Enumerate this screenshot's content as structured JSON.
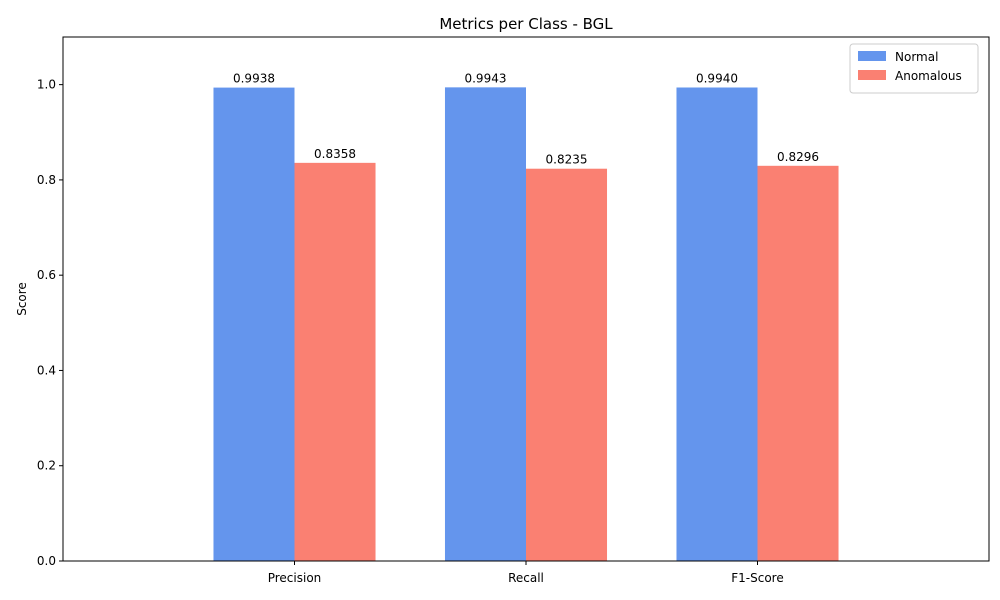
{
  "chart_data": {
    "type": "bar",
    "title": "Metrics per Class - BGL",
    "xlabel": "",
    "ylabel": "Score",
    "categories": [
      "Precision",
      "Recall",
      "F1-Score"
    ],
    "series": [
      {
        "name": "Normal",
        "values": [
          0.9938,
          0.9943,
          0.994
        ],
        "labels": [
          "0.9938",
          "0.9943",
          "0.9940"
        ],
        "color": "#6495ED"
      },
      {
        "name": "Anomalous",
        "values": [
          0.8358,
          0.8235,
          0.8296
        ],
        "labels": [
          "0.8358",
          "0.8235",
          "0.8296"
        ],
        "color": "#FA8072"
      }
    ],
    "ylim": [
      0,
      1.1
    ],
    "yticks": [
      0.0,
      0.2,
      0.4,
      0.6,
      0.8,
      1.0
    ],
    "ytick_labels": [
      "0.0",
      "0.2",
      "0.4",
      "0.6",
      "0.8",
      "1.0"
    ],
    "grid": false,
    "legend_position": "top-right"
  }
}
